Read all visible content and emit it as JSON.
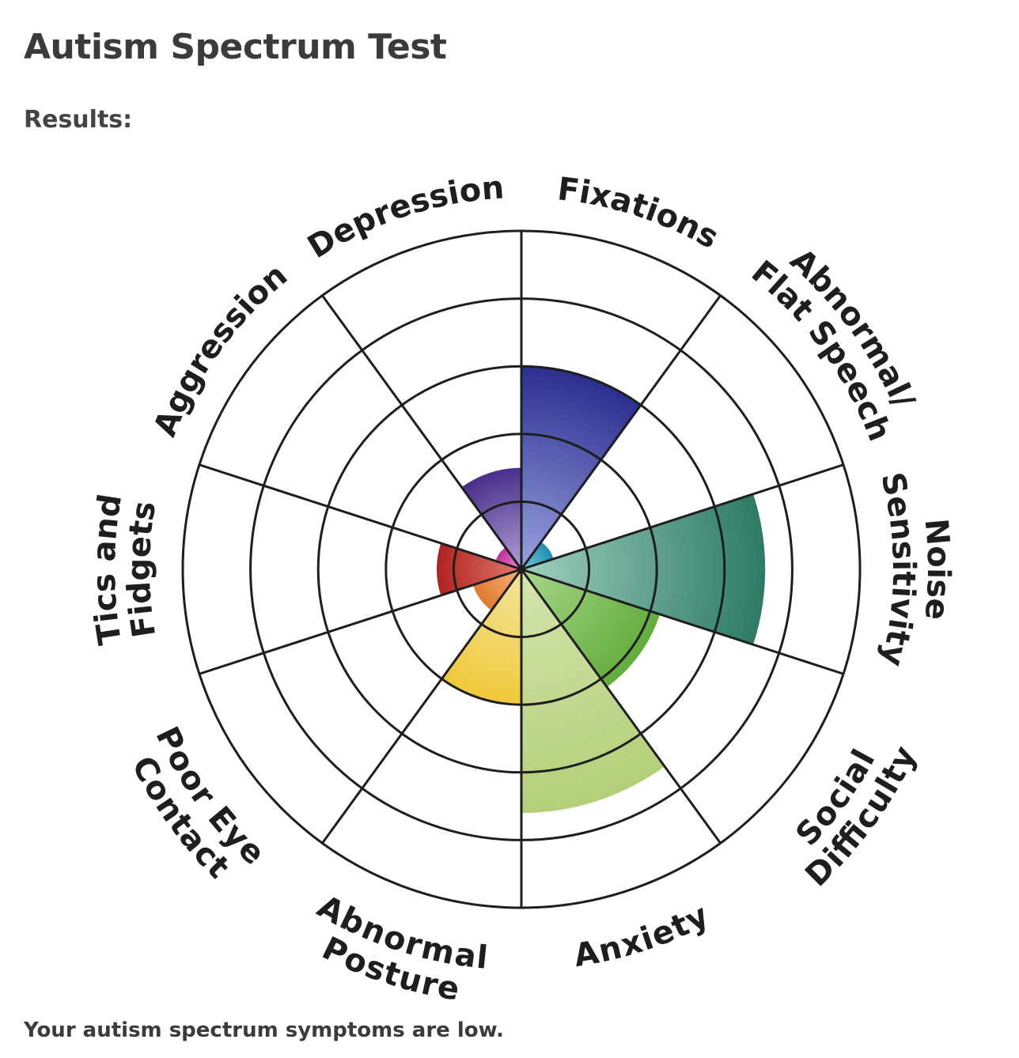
{
  "page": {
    "title": "Autism Spectrum Test",
    "results_label": "Results:",
    "summary": "Your autism spectrum symptoms are low."
  },
  "chart_data": {
    "type": "polar-area",
    "title": "",
    "rings": 5,
    "rlim": [
      0,
      5
    ],
    "grid": true,
    "categories": [
      {
        "name": "Fixations",
        "lines": [
          "Fixations"
        ],
        "value": 3,
        "color": "#2b2f8f",
        "highlight": "#9aa3e0"
      },
      {
        "name": "Abnormal/ Flat Speech",
        "lines": [
          "Abnormal/",
          "Flat Speech"
        ],
        "value": 0.5,
        "color": "#1f8fb0",
        "highlight": "#7ccbe0"
      },
      {
        "name": "Noise Sensitivity",
        "lines": [
          "Noise",
          "Sensitivity"
        ],
        "value": 3.6,
        "color": "#2e7a66",
        "highlight": "#9fd0c0"
      },
      {
        "name": "Social Difficulty",
        "lines": [
          "Social",
          "Difficulty"
        ],
        "value": 2.15,
        "color": "#63ad3c",
        "highlight": "#a8d68b"
      },
      {
        "name": "Anxiety",
        "lines": [
          "Anxiety"
        ],
        "value": 3.6,
        "color": "#b4cf7a",
        "highlight": "#d4e5ad"
      },
      {
        "name": "Abnormal Posture",
        "lines": [
          "Abnormal",
          "Posture"
        ],
        "value": 2,
        "color": "#f0c93a",
        "highlight": "#f4e59e"
      },
      {
        "name": "Poor Eye Contact",
        "lines": [
          "Poor Eye",
          "Contact"
        ],
        "value": 0.75,
        "color": "#e07a2e",
        "highlight": "#f4b37d"
      },
      {
        "name": "Tics and Fidgets",
        "lines": [
          "Tics and",
          "Fidgets"
        ],
        "value": 1.25,
        "color": "#b0221f",
        "highlight": "#e07a6d"
      },
      {
        "name": "Aggression",
        "lines": [
          "Aggression"
        ],
        "value": 0.4,
        "color": "#c0309a",
        "highlight": "#e890cf"
      },
      {
        "name": "Depression",
        "lines": [
          "Depression"
        ],
        "value": 1.5,
        "color": "#4a2f8a",
        "highlight": "#b0a0d8"
      }
    ]
  }
}
